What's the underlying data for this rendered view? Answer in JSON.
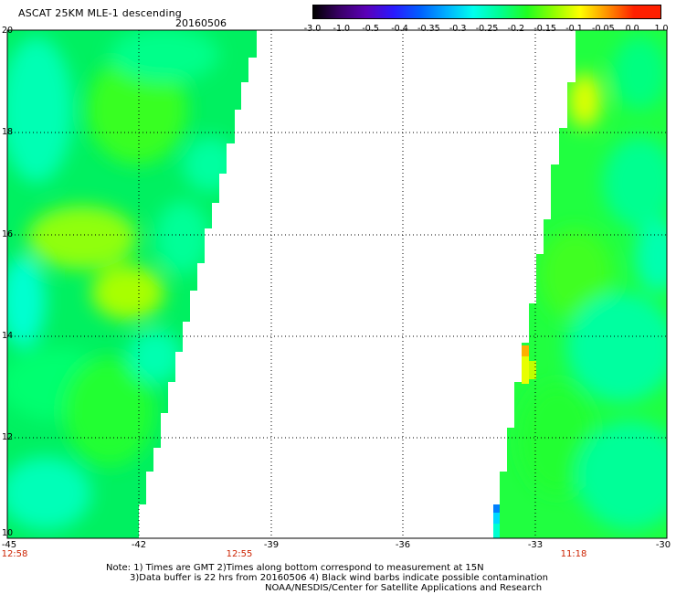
{
  "header": {
    "title": "ASCAT 25KM MLE-1 descending",
    "date": "20160506"
  },
  "colorbar": {
    "labels": [
      "-3.0",
      "-1.0",
      "-0.5",
      "-0.4",
      "-0.35",
      "-0.3",
      "-0.25",
      "-0.2",
      "-0.15",
      "-0.1",
      "-0.05",
      "0.0",
      "1.0"
    ],
    "colors": [
      "#000000",
      "#3a0068",
      "#5b00b8",
      "#2a1aff",
      "#0060ff",
      "#00b0ff",
      "#00ffee",
      "#00ff90",
      "#20ff20",
      "#90ff00",
      "#ffff00",
      "#ff9000",
      "#ff2000"
    ]
  },
  "axes": {
    "y_labels": [
      "20",
      "18",
      "16",
      "14",
      "12",
      "10"
    ],
    "x_labels": [
      "-45",
      "-42",
      "-39",
      "-36",
      "-33",
      "-30"
    ]
  },
  "times": [
    "12:58",
    "12:55",
    "11:18"
  ],
  "notes": {
    "line1": "Note: 1) Times are GMT 2)Times along bottom correspond to measurement at 15N",
    "line2": "3)Data buffer is 22 hrs from 20160506 4) Black wind barbs indicate possible contamination",
    "line3": "NOAA/NESDIS/Center for Satellite Applications and Research"
  }
}
